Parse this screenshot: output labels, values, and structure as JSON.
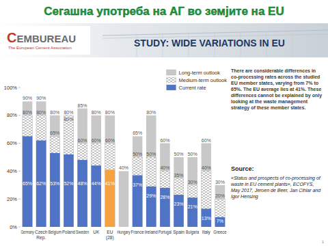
{
  "slide": {
    "title": "Сегашна употреба на АГ во земјите на  EU",
    "logo_name": "CEMBUREAU",
    "logo_tagline": "The European Cement Association",
    "page_number": "1"
  },
  "chart_data": {
    "type": "bar",
    "title": "STUDY: WIDE VARIATIONS IN EU",
    "annotations": [
      "There are considerable differences in co-processing rates across the studied EU member states, varying from 7% to 65%. The EU average lies at 41%. These differences cannot be explained by only looking at the waste management strategy of these member states.",
      "Source:",
      "«Status and prospects of co-processing of waste in EU cement plants», ECOFYS, May 2017, Jeroen de Beer, Jan Cihlar and Igor Hensing"
    ],
    "categories": [
      "Germany",
      "Czech Rep.",
      "Belgium",
      "Poland",
      "Sweden",
      "UK",
      "EU (28)",
      "Hungary",
      "France",
      "Ireland",
      "Portugal",
      "Spain",
      "Bulgaria",
      "Italy",
      "Greece"
    ],
    "series": [
      {
        "name": "Long-term outlook",
        "color": "#c8c8c8",
        "values": [
          90,
          90,
          80,
          80,
          85,
          80,
          80,
          40,
          65,
          80,
          60,
          50,
          50,
          60,
          30
        ],
        "value_labels": [
          "90%",
          "90%",
          "80%",
          "80%",
          "85%",
          "80%",
          "80%",
          "40%",
          "65%",
          "80%",
          "60%",
          "50%",
          "50%",
          "60%",
          "30%"
        ]
      },
      {
        "name": "Medium-term outlook",
        "color": "#8a8a8a",
        "line_style": "dashed",
        "values": [
          80,
          80,
          65,
          80,
          60,
          60,
          60,
          null,
          50,
          50,
          40,
          35,
          30,
          40,
          20
        ],
        "value_labels": [
          "80%",
          "80%",
          "65%",
          "80%",
          "60%",
          "60%",
          "60%",
          null,
          "50%",
          "50%",
          "40%",
          "35%",
          "30%",
          "40%",
          "20%"
        ]
      },
      {
        "name": "Current rate",
        "color": "#4f74c6",
        "colors": [
          "#4f74c6",
          "#4f74c6",
          "#4f74c6",
          "#4f74c6",
          "#4f74c6",
          "#4f74c6",
          "#f5a342",
          "#4f74c6",
          "#4f74c6",
          "#4f74c6",
          "#4f74c6",
          "#4f74c6",
          "#4f74c6",
          "#4f74c6",
          "#4f74c6"
        ],
        "values": [
          65,
          62,
          53,
          52,
          48,
          44,
          41,
          null,
          37,
          29,
          28,
          23,
          21,
          13,
          7
        ],
        "value_labels": [
          "65%",
          "62%",
          "53%",
          "52%",
          "48%",
          "44%",
          "41%",
          null,
          "37%",
          "29%",
          "28%",
          "23%",
          "21%",
          "13%",
          "7%"
        ]
      }
    ],
    "ylim": [
      0,
      100
    ],
    "yticks": [
      {
        "value": 0,
        "label": "0%"
      },
      {
        "value": 20,
        "label": "20%"
      },
      {
        "value": 40,
        "label": "40%"
      },
      {
        "value": 60,
        "label": "60%"
      },
      {
        "value": 80,
        "label": "80%"
      },
      {
        "value": 100,
        "label": "100%"
      }
    ],
    "grid": false,
    "stacked": false,
    "data_labels": true,
    "legend": "top-right"
  }
}
